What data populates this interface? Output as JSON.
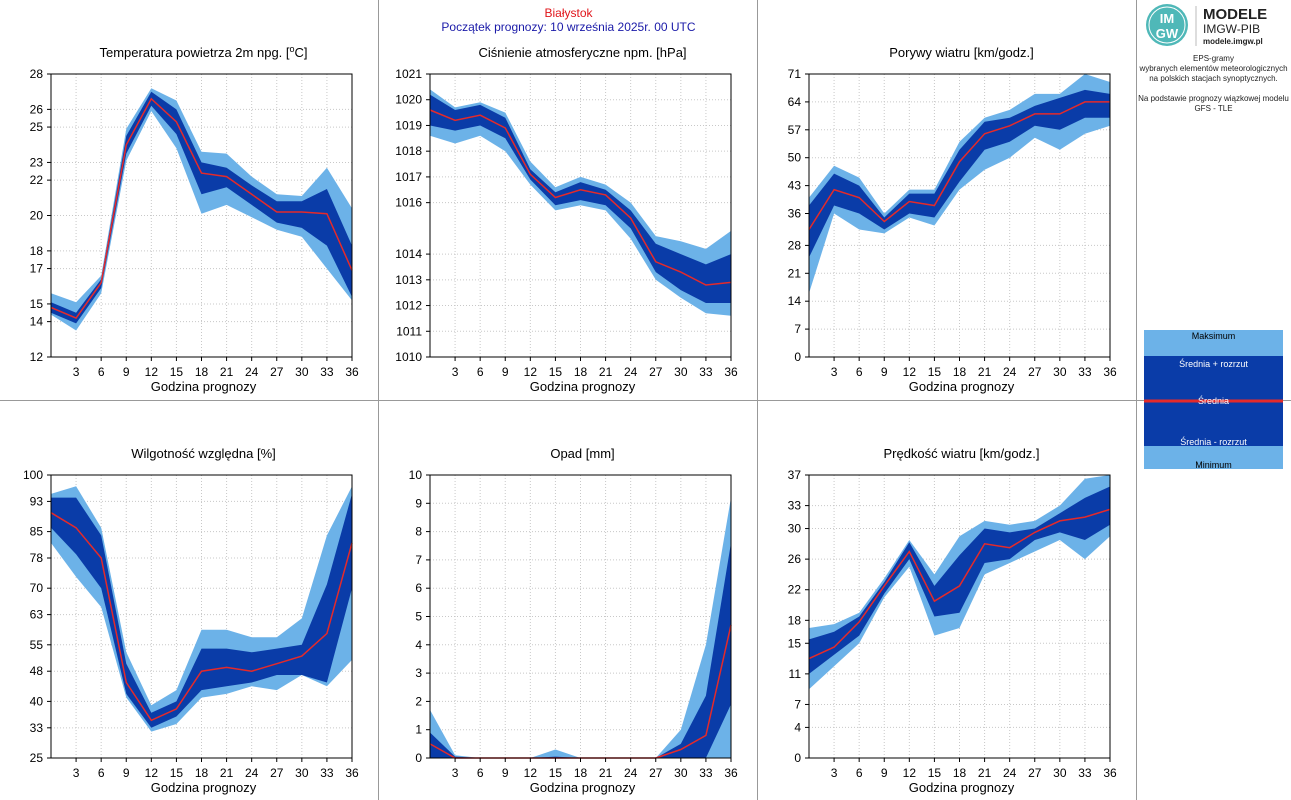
{
  "header": {
    "location": "Białystok",
    "forecast_start": "Początek prognozy: 10 września 2025r. 00 UTC"
  },
  "brand": {
    "logo_small": "IM",
    "logo_small2": "GW",
    "title": "MODELE",
    "subtitle": "IMGW-PIB",
    "url": "modele.imgw.pl"
  },
  "sidebar": {
    "lines": [
      "EPS-gramy",
      "wybranych elementów meteorologicznych",
      "na polskich stacjach  synoptycznych.",
      "",
      "Na podstawie prognozy wiązkowej modelu",
      "GFS - TLE"
    ]
  },
  "legend": {
    "items": [
      "Maksimum",
      "Średnia + rozrzut",
      "Średnia",
      "Średnia - rozrzut",
      "Minimum"
    ]
  },
  "colors": {
    "light_band": "#6cb2e8",
    "dark_band": "#0a3ca8",
    "mean_line": "#e52a2a",
    "header_location": "#e0141a",
    "header_start": "#1a1aa8",
    "grid": "#c8c8c8"
  },
  "chart_data": [
    {
      "type": "area",
      "title": "Temperatura powietrza 2m npg. [°C]",
      "title_pre": "Temperatura powietrza 2m npg. [",
      "title_sup": "o",
      "title_post": "C]",
      "xlabel": "Godzina prognozy",
      "x": [
        0,
        3,
        6,
        9,
        12,
        15,
        18,
        21,
        24,
        27,
        30,
        33,
        36
      ],
      "xticks": [
        3,
        6,
        9,
        12,
        15,
        18,
        21,
        24,
        27,
        30,
        33,
        36
      ],
      "ylim": [
        12,
        28
      ],
      "yticks": [
        12,
        14,
        15,
        17,
        18,
        20,
        22,
        23,
        25,
        26,
        28
      ],
      "grid": true,
      "series": [
        {
          "name": "Maksimum",
          "values": [
            15.6,
            15.1,
            16.6,
            24.9,
            27.2,
            26.5,
            23.6,
            23.5,
            22.2,
            21.2,
            21.1,
            22.7,
            20.4
          ]
        },
        {
          "name": "Średnia + rozrzut",
          "values": [
            15.1,
            14.5,
            16.4,
            24.5,
            27.0,
            26.0,
            23.0,
            22.7,
            21.7,
            20.8,
            20.8,
            21.5,
            18.3
          ]
        },
        {
          "name": "Średnia",
          "values": [
            14.8,
            14.2,
            16.2,
            24.0,
            26.6,
            25.3,
            22.4,
            22.2,
            21.2,
            20.2,
            20.2,
            20.1,
            16.9
          ]
        },
        {
          "name": "Średnia - rozrzut",
          "values": [
            14.5,
            13.9,
            15.9,
            23.5,
            26.2,
            24.6,
            21.2,
            21.6,
            20.6,
            19.6,
            19.3,
            18.3,
            15.4
          ]
        },
        {
          "name": "Minimum",
          "values": [
            14.4,
            13.5,
            15.6,
            23.1,
            25.9,
            23.8,
            20.1,
            20.6,
            19.9,
            19.2,
            18.8,
            17.0,
            15.2
          ]
        }
      ]
    },
    {
      "type": "area",
      "title": "Ciśnienie atmosferyczne npm. [hPa]",
      "xlabel": "Godzina prognozy",
      "x": [
        0,
        3,
        6,
        9,
        12,
        15,
        18,
        21,
        24,
        27,
        30,
        33,
        36
      ],
      "xticks": [
        3,
        6,
        9,
        12,
        15,
        18,
        21,
        24,
        27,
        30,
        33,
        36
      ],
      "ylim": [
        1010,
        1021
      ],
      "yticks": [
        1010,
        1011,
        1012,
        1013,
        1014,
        1016,
        1017,
        1018,
        1019,
        1020,
        1021
      ],
      "grid": true,
      "series": [
        {
          "name": "Maksimum",
          "values": [
            1020.4,
            1019.7,
            1019.9,
            1019.5,
            1017.6,
            1016.6,
            1017.0,
            1016.7,
            1016.0,
            1014.7,
            1014.5,
            1014.2,
            1014.9
          ]
        },
        {
          "name": "Średnia + rozrzut",
          "values": [
            1020.2,
            1019.6,
            1019.8,
            1019.3,
            1017.3,
            1016.4,
            1016.8,
            1016.5,
            1015.7,
            1014.4,
            1014.0,
            1013.6,
            1014.0
          ]
        },
        {
          "name": "Średnia",
          "values": [
            1019.6,
            1019.2,
            1019.4,
            1018.9,
            1017.1,
            1016.2,
            1016.5,
            1016.3,
            1015.4,
            1013.7,
            1013.3,
            1012.8,
            1012.9
          ]
        },
        {
          "name": "Średnia - rozrzut",
          "values": [
            1019.0,
            1018.8,
            1019.0,
            1018.5,
            1016.9,
            1015.9,
            1016.1,
            1015.9,
            1015.0,
            1013.3,
            1012.6,
            1012.1,
            1012.1
          ]
        },
        {
          "name": "Minimum",
          "values": [
            1018.6,
            1018.3,
            1018.6,
            1018.0,
            1016.7,
            1015.7,
            1015.9,
            1015.7,
            1014.6,
            1013.0,
            1012.3,
            1011.7,
            1011.6
          ]
        }
      ]
    },
    {
      "type": "area",
      "title": "Porywy wiatru [km/godz.]",
      "xlabel": "Godzina prognozy",
      "x": [
        0,
        3,
        6,
        9,
        12,
        15,
        18,
        21,
        24,
        27,
        30,
        33,
        36
      ],
      "xticks": [
        3,
        6,
        9,
        12,
        15,
        18,
        21,
        24,
        27,
        30,
        33,
        36
      ],
      "ylim": [
        0,
        71
      ],
      "yticks": [
        0,
        7,
        14,
        21,
        28,
        36,
        43,
        50,
        57,
        64,
        71
      ],
      "grid": true,
      "series": [
        {
          "name": "Maksimum",
          "values": [
            40,
            48,
            45,
            36,
            42,
            42,
            54,
            60,
            62,
            66,
            66,
            71,
            69
          ]
        },
        {
          "name": "Średnia + rozrzut",
          "values": [
            38,
            46,
            43,
            35,
            41,
            41,
            52,
            59,
            60,
            63,
            65,
            67,
            66
          ]
        },
        {
          "name": "Średnia",
          "values": [
            32,
            42,
            40,
            34,
            39,
            38,
            49,
            56,
            58,
            61,
            61,
            64,
            64
          ]
        },
        {
          "name": "Średnia - rozrzut",
          "values": [
            25,
            38,
            36,
            32,
            36,
            35,
            44,
            52,
            54,
            58,
            57,
            60,
            60
          ]
        },
        {
          "name": "Minimum",
          "values": [
            16,
            36,
            32,
            31,
            35,
            33,
            42,
            47,
            50,
            55,
            52,
            56,
            58
          ]
        }
      ]
    },
    {
      "type": "area",
      "title": "Wilgotność względna [%]",
      "xlabel": "Godzina prognozy",
      "x": [
        0,
        3,
        6,
        9,
        12,
        15,
        18,
        21,
        24,
        27,
        30,
        33,
        36
      ],
      "xticks": [
        3,
        6,
        9,
        12,
        15,
        18,
        21,
        24,
        27,
        30,
        33,
        36
      ],
      "ylim": [
        25,
        100
      ],
      "yticks": [
        25,
        33,
        40,
        48,
        55,
        63,
        70,
        78,
        85,
        93,
        100
      ],
      "grid": true,
      "series": [
        {
          "name": "Maksimum",
          "values": [
            95,
            97,
            86,
            53,
            39,
            43,
            59,
            59,
            57,
            57,
            62,
            84,
            97
          ]
        },
        {
          "name": "Średnia + rozrzut",
          "values": [
            94,
            94,
            84,
            50,
            37,
            40,
            54,
            54,
            53,
            54,
            55,
            71,
            95
          ]
        },
        {
          "name": "Średnia",
          "values": [
            90,
            86,
            78,
            45,
            35,
            38,
            48,
            49,
            48,
            50,
            52,
            58,
            82
          ]
        },
        {
          "name": "Średnia - rozrzut",
          "values": [
            86,
            79,
            70,
            42,
            33,
            36,
            43,
            44,
            45,
            47,
            47,
            45,
            70
          ]
        },
        {
          "name": "Minimum",
          "values": [
            82,
            73,
            65,
            41,
            32,
            34,
            41,
            42,
            44,
            43,
            47,
            44,
            51
          ]
        }
      ]
    },
    {
      "type": "area",
      "title": "Opad [mm]",
      "xlabel": "Godzina prognozy",
      "x": [
        0,
        3,
        6,
        9,
        12,
        15,
        18,
        21,
        24,
        27,
        30,
        33,
        36
      ],
      "xticks": [
        3,
        6,
        9,
        12,
        15,
        18,
        21,
        24,
        27,
        30,
        33,
        36
      ],
      "ylim": [
        0,
        10
      ],
      "yticks": [
        0,
        1,
        2,
        3,
        4,
        5,
        6,
        7,
        8,
        9,
        10
      ],
      "grid": true,
      "series": [
        {
          "name": "Maksimum",
          "values": [
            1.7,
            0.1,
            0.0,
            0.0,
            0.0,
            0.3,
            0.0,
            0.0,
            0.0,
            0.0,
            1.0,
            4.0,
            9.2
          ]
        },
        {
          "name": "Średnia + rozrzut",
          "values": [
            0.9,
            0.05,
            0.0,
            0.0,
            0.0,
            0.05,
            0.0,
            0.0,
            0.0,
            0.0,
            0.5,
            2.2,
            7.6
          ]
        },
        {
          "name": "Średnia",
          "values": [
            0.5,
            0.0,
            0.0,
            0.0,
            0.0,
            0.0,
            0.0,
            0.0,
            0.0,
            0.0,
            0.3,
            0.8,
            4.7
          ]
        },
        {
          "name": "Średnia - rozrzut",
          "values": [
            0.0,
            0.0,
            0.0,
            0.0,
            0.0,
            0.0,
            0.0,
            0.0,
            0.0,
            0.0,
            0.0,
            0.0,
            1.9
          ]
        },
        {
          "name": "Minimum",
          "values": [
            0.0,
            0.0,
            0.0,
            0.0,
            0.0,
            0.0,
            0.0,
            0.0,
            0.0,
            0.0,
            0.0,
            0.0,
            0.0
          ]
        }
      ]
    },
    {
      "type": "area",
      "title": "Prędkość wiatru [km/godz.]",
      "xlabel": "Godzina prognozy",
      "x": [
        0,
        3,
        6,
        9,
        12,
        15,
        18,
        21,
        24,
        27,
        30,
        33,
        36
      ],
      "xticks": [
        3,
        6,
        9,
        12,
        15,
        18,
        21,
        24,
        27,
        30,
        33,
        36
      ],
      "ylim": [
        0,
        37
      ],
      "yticks": [
        0,
        4,
        7,
        11,
        15,
        18,
        22,
        26,
        30,
        33,
        37
      ],
      "grid": true,
      "series": [
        {
          "name": "Maksimum",
          "values": [
            17,
            17.5,
            19,
            23.5,
            28.5,
            24,
            29,
            31,
            30.5,
            31,
            33,
            36.5,
            37
          ]
        },
        {
          "name": "Średnia + rozrzut",
          "values": [
            15.5,
            16.5,
            18.5,
            23,
            28.2,
            22.5,
            26.5,
            30,
            29.5,
            30,
            32,
            34,
            35.5
          ]
        },
        {
          "name": "Średnia",
          "values": [
            13,
            14.5,
            17.8,
            22.5,
            27,
            20.5,
            22.5,
            28,
            27.5,
            29.5,
            31,
            31.5,
            32.5
          ]
        },
        {
          "name": "Średnia - rozrzut",
          "values": [
            11,
            13.5,
            16,
            21.5,
            26,
            18.5,
            19,
            25.5,
            26,
            28.5,
            29.5,
            28.5,
            30.5
          ]
        },
        {
          "name": "Minimum",
          "values": [
            9,
            12,
            15,
            21,
            25,
            16,
            17,
            24,
            25.5,
            27,
            28.5,
            26,
            29
          ]
        }
      ]
    }
  ]
}
